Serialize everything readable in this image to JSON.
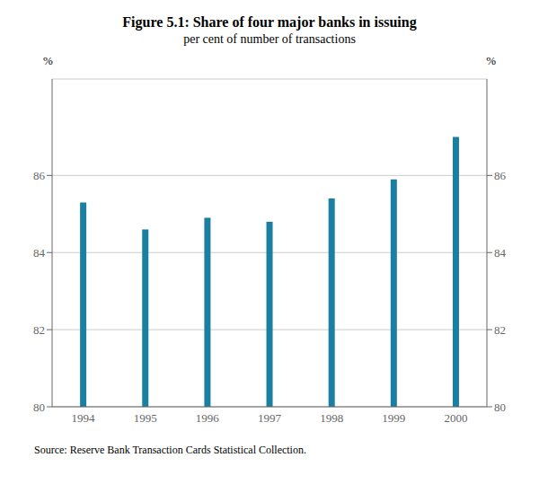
{
  "chart_data": {
    "type": "bar",
    "title": "Figure 5.1: Share of four major banks in issuing",
    "subtitle": "per cent of number of transactions",
    "categories": [
      "1994",
      "1995",
      "1996",
      "1997",
      "1998",
      "1999",
      "2000"
    ],
    "values": [
      85.3,
      84.6,
      84.9,
      84.8,
      85.4,
      85.9,
      87.0
    ],
    "color": "#1a7fa0",
    "ylim": [
      80,
      88.5
    ],
    "yticks": [
      80,
      82,
      84,
      86
    ],
    "y2lim": [
      80,
      88.5
    ],
    "y2ticks": [
      80,
      82,
      84,
      86
    ],
    "ylabel": "%",
    "y2label": "%",
    "grid": true,
    "source": "Source: Reserve Bank Transaction Cards Statistical Collection."
  }
}
